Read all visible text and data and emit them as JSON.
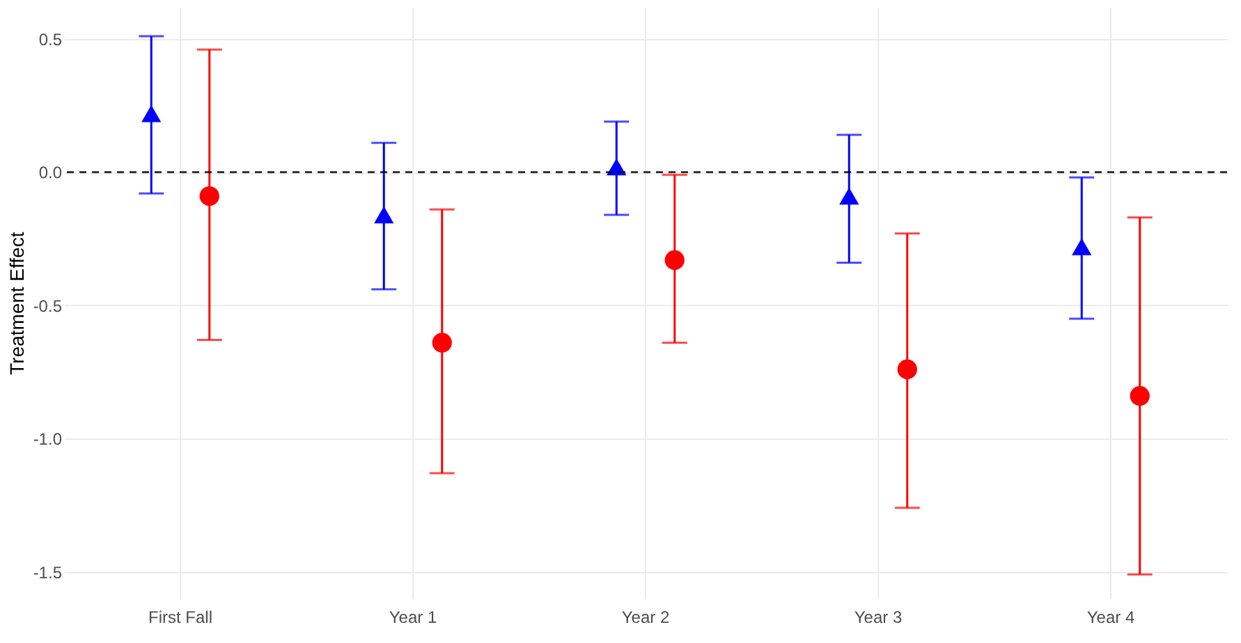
{
  "chart_data": {
    "type": "scatter",
    "ylabel": "Treatment Effect",
    "categories": [
      "First Fall",
      "Year 1",
      "Year 2",
      "Year 3",
      "Year 4"
    ],
    "series": [
      {
        "color": "#0000ff",
        "marker": "triangle",
        "values": [
          0.22,
          -0.16,
          0.02,
          -0.09,
          -0.28
        ],
        "errors": [
          [
            -0.08,
            0.51
          ],
          [
            -0.44,
            0.11
          ],
          [
            -0.16,
            0.19
          ],
          [
            -0.34,
            0.14
          ],
          [
            -0.55,
            -0.02
          ]
        ]
      },
      {
        "color": "#ff0000",
        "marker": "circle",
        "values": [
          -0.09,
          -0.64,
          -0.33,
          -0.74,
          -0.84
        ],
        "errors": [
          [
            -0.63,
            0.46
          ],
          [
            -1.13,
            -0.14
          ],
          [
            -0.64,
            -0.01
          ],
          [
            -1.26,
            -0.23
          ],
          [
            -1.51,
            -0.17
          ]
        ]
      }
    ],
    "ylim": [
      -1.6,
      0.62
    ],
    "yticks": [
      {
        "value": -1.5,
        "label": "-1.5"
      },
      {
        "value": -1,
        "label": "-1.0"
      },
      {
        "value": -0.5,
        "label": "-0.5"
      },
      {
        "value": 0,
        "label": "0.0"
      },
      0.5
    ],
    "ref_lines": [
      {
        "axis": "y",
        "value": 0,
        "color": "#000000",
        "line_style": "dashed"
      }
    ],
    "grid": true
  }
}
